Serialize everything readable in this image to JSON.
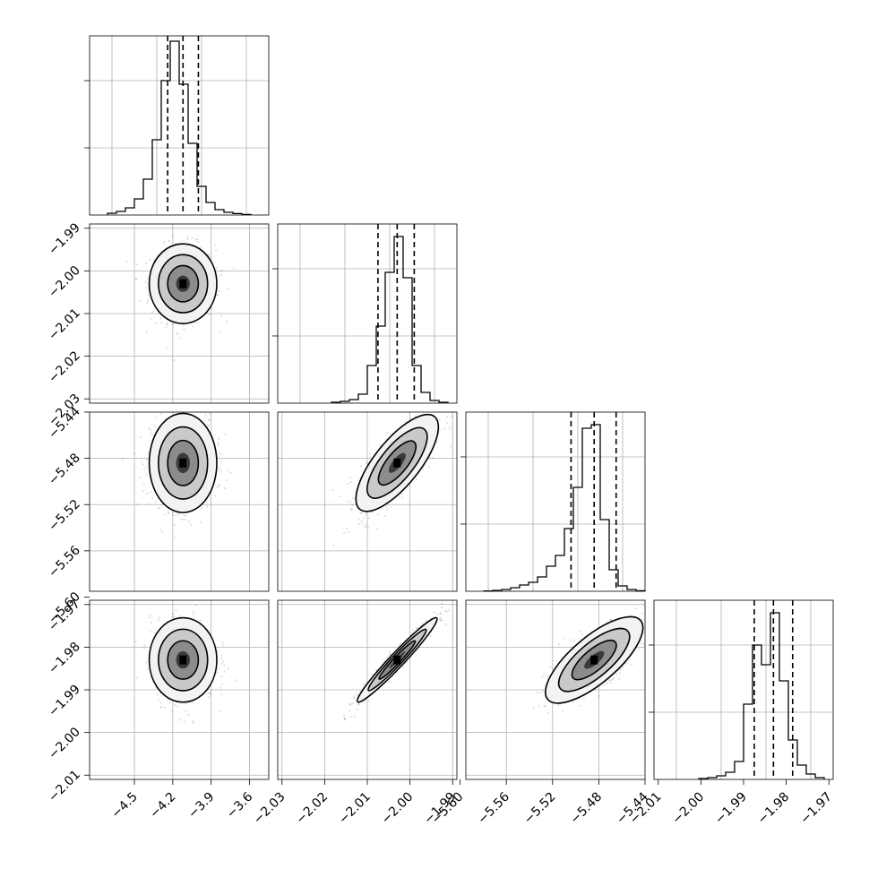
{
  "chart_data": {
    "type": "corner",
    "parameters": [
      {
        "index": 0,
        "range": [
          -4.85,
          -3.45
        ],
        "ticks": [
          "-4.5",
          "-4.2",
          "-3.9",
          "-3.6"
        ],
        "tick_values": [
          -4.5,
          -4.2,
          -3.9,
          -3.6
        ],
        "median": -4.12,
        "q16": -4.24,
        "q84": -4.0
      },
      {
        "index": 1,
        "range": [
          -2.031,
          -1.989
        ],
        "ticks": [
          "-2.03",
          "-2.02",
          "-2.01",
          "-2.00",
          "-1.99"
        ],
        "tick_values": [
          -2.03,
          -2.02,
          -2.01,
          -2.0,
          -1.99
        ],
        "median": -2.003,
        "q16": -2.0075,
        "q84": -1.999
      },
      {
        "index": 2,
        "range": [
          -5.595,
          -5.44
        ],
        "ticks": [
          "-5.60",
          "-5.56",
          "-5.52",
          "-5.48",
          "-5.44"
        ],
        "tick_values": [
          -5.6,
          -5.56,
          -5.52,
          -5.48,
          -5.44
        ],
        "median": -5.484,
        "q16": -5.504,
        "q84": -5.465
      },
      {
        "index": 3,
        "range": [
          -2.011,
          -1.969
        ],
        "ticks": [
          "-2.01",
          "-2.00",
          "-1.99",
          "-1.98",
          "-1.97"
        ],
        "tick_values": [
          -2.01,
          -2.0,
          -1.99,
          -1.98,
          -1.97
        ],
        "median": -1.983,
        "q16": -1.9875,
        "q84": -1.9785
      }
    ],
    "histograms": [
      {
        "param": 0,
        "bin_edges_frac": [
          0.1,
          0.15,
          0.2,
          0.25,
          0.3,
          0.35,
          0.4,
          0.45,
          0.5,
          0.55,
          0.6,
          0.65,
          0.7,
          0.75,
          0.8,
          0.85,
          0.9
        ],
        "counts": [
          0.01,
          0.02,
          0.04,
          0.09,
          0.2,
          0.42,
          0.75,
          0.97,
          0.73,
          0.4,
          0.16,
          0.07,
          0.03,
          0.015,
          0.008,
          0.003
        ]
      },
      {
        "param": 1,
        "bin_edges_frac": [
          0.3,
          0.35,
          0.4,
          0.45,
          0.5,
          0.55,
          0.6,
          0.65,
          0.7,
          0.75,
          0.8,
          0.85,
          0.9,
          0.95
        ],
        "counts": [
          0.005,
          0.01,
          0.02,
          0.05,
          0.21,
          0.43,
          0.73,
          0.93,
          0.7,
          0.21,
          0.06,
          0.015,
          0.005
        ]
      },
      {
        "param": 2,
        "bin_edges_frac": [
          0.1,
          0.15,
          0.2,
          0.25,
          0.3,
          0.35,
          0.4,
          0.45,
          0.5,
          0.55,
          0.6,
          0.65,
          0.7,
          0.75,
          0.8,
          0.85,
          0.9,
          0.95,
          1.0
        ],
        "counts": [
          0.002,
          0.005,
          0.01,
          0.02,
          0.035,
          0.05,
          0.08,
          0.14,
          0.2,
          0.35,
          0.58,
          0.91,
          0.93,
          0.4,
          0.12,
          0.03,
          0.01,
          0.003
        ]
      },
      {
        "param": 3,
        "bin_edges_frac": [
          0.25,
          0.3,
          0.35,
          0.4,
          0.45,
          0.5,
          0.55,
          0.6,
          0.65,
          0.7,
          0.75,
          0.8,
          0.85,
          0.9,
          0.95
        ],
        "counts": [
          0.005,
          0.01,
          0.02,
          0.04,
          0.1,
          0.42,
          0.75,
          0.64,
          0.93,
          0.55,
          0.22,
          0.08,
          0.03,
          0.01
        ]
      }
    ],
    "pairs": [
      {
        "x_param": 0,
        "y_param": 1,
        "correlation": 0.0
      },
      {
        "x_param": 0,
        "y_param": 2,
        "correlation": 0.0
      },
      {
        "x_param": 1,
        "y_param": 2,
        "correlation": 0.75
      },
      {
        "x_param": 0,
        "y_param": 3,
        "correlation": 0.0
      },
      {
        "x_param": 1,
        "y_param": 3,
        "correlation": 0.97
      },
      {
        "x_param": 2,
        "y_param": 3,
        "correlation": 0.75
      }
    ],
    "grid": true,
    "colors": {
      "line": "#000000",
      "points": "#000000",
      "grid": "#b0b0b0"
    }
  }
}
